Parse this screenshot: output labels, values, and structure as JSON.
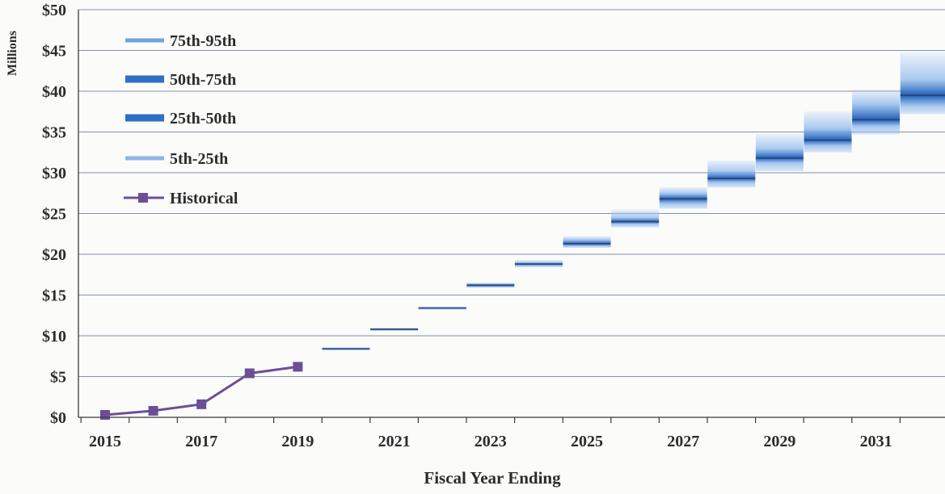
{
  "chart_data": {
    "type": "area",
    "title": "",
    "xlabel": "Fiscal Year Ending",
    "ylabel": "Millions",
    "ylim": [
      0,
      50
    ],
    "xlim": [
      2015,
      2032
    ],
    "y_ticks": [
      0,
      5,
      10,
      15,
      20,
      25,
      30,
      35,
      40,
      45,
      50
    ],
    "y_tick_labels": [
      "$0",
      "$5",
      "$10",
      "$15",
      "$20",
      "$25",
      "$30",
      "$35",
      "$40",
      "$45",
      "$50"
    ],
    "x_tick_labels": [
      "2015",
      "2017",
      "2019",
      "2021",
      "2023",
      "2025",
      "2027",
      "2029",
      "2031"
    ],
    "grid": true,
    "legend_position": "top-left",
    "legend": [
      {
        "label": "75th-95th",
        "color": "#6fa4e0"
      },
      {
        "label": "50th-75th",
        "color": "#2e6fc4"
      },
      {
        "label": "25th-50th",
        "color": "#2e6fc4"
      },
      {
        "label": "5th-25th",
        "color": "#8bb6ea"
      },
      {
        "label": "Historical",
        "color": "#6b4f96"
      }
    ],
    "historical": {
      "name": "Historical",
      "x": [
        2015,
        2016,
        2017,
        2018,
        2019
      ],
      "values": [
        0.3,
        0.8,
        1.6,
        5.4,
        6.2
      ]
    },
    "projection_years": [
      2020,
      2021,
      2022,
      2023,
      2024,
      2025,
      2026,
      2027,
      2028,
      2029,
      2030,
      2031,
      2032
    ],
    "projection": {
      "p5": [
        8.2,
        10.6,
        13.2,
        15.9,
        18.4,
        20.8,
        23.3,
        25.6,
        28.2,
        30.2,
        32.5,
        34.7,
        37.2
      ],
      "p25": [
        8.3,
        10.7,
        13.3,
        16.0,
        18.6,
        21.0,
        23.7,
        26.2,
        28.8,
        31.2,
        33.3,
        35.7,
        38.2
      ],
      "p50": [
        8.4,
        10.8,
        13.4,
        16.2,
        18.8,
        21.3,
        24.0,
        26.8,
        29.3,
        31.8,
        34.0,
        36.5,
        39.5
      ],
      "p75": [
        8.5,
        10.9,
        13.5,
        16.4,
        19.0,
        21.8,
        24.5,
        27.5,
        30.2,
        33.0,
        35.5,
        38.5,
        41.5
      ],
      "p95": [
        8.6,
        11.0,
        13.6,
        16.5,
        19.3,
        22.2,
        25.5,
        28.2,
        31.5,
        34.8,
        37.5,
        40.2,
        44.8
      ]
    },
    "colors": {
      "grid": "#5b6f8e",
      "axis": "#3a3a3a",
      "historical": "#6b4f96",
      "band_dark": "#1f5fb8",
      "band_light": "#9cc2ef"
    }
  }
}
